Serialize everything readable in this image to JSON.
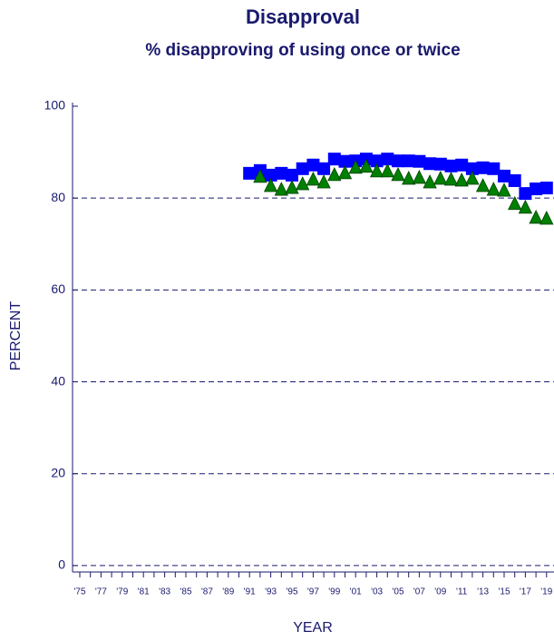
{
  "chart_data": {
    "type": "scatter",
    "title": "Disapproval",
    "subtitle": "% disapproving of using once or twice",
    "x_label": "YEAR",
    "y_label": "PERCENT",
    "categories": [
      "'75",
      null,
      "'77",
      null,
      "'79",
      null,
      "'81",
      null,
      "'83",
      null,
      "'85",
      null,
      "'87",
      null,
      "'89",
      null,
      "'91",
      null,
      "'93",
      null,
      "'95",
      null,
      "'97",
      null,
      "'99",
      null,
      "'01",
      null,
      "'03",
      null,
      "'05",
      null,
      "'07",
      null,
      "'09",
      null,
      "'11",
      null,
      "'13",
      null,
      "'15",
      null,
      "'17",
      null,
      "'19"
    ],
    "series": [
      {
        "color": "#0000ff",
        "marker": "square",
        "values": [
          null,
          null,
          null,
          null,
          null,
          null,
          null,
          null,
          null,
          null,
          null,
          null,
          null,
          null,
          null,
          null,
          85.4,
          86,
          85,
          85.4,
          85,
          86.4,
          87.2,
          86.4,
          88.5,
          88,
          88.1,
          88.5,
          88.1,
          88.5,
          88.1,
          88.1,
          88,
          87.5,
          87.4,
          87,
          87.2,
          86.4,
          86.6,
          86.4,
          84.8,
          83.8,
          81,
          82,
          82.2
        ]
      },
      {
        "color": "#008000",
        "marker": "triangle",
        "values": [
          null,
          null,
          null,
          null,
          null,
          null,
          null,
          null,
          null,
          null,
          null,
          null,
          null,
          null,
          null,
          null,
          null,
          84.6,
          82.6,
          81.8,
          82.2,
          83,
          84,
          83.4,
          85,
          85.4,
          86.6,
          86.8,
          85.8,
          85.8,
          85,
          84.2,
          84.4,
          83.4,
          84.2,
          84,
          83.8,
          84.2,
          82.6,
          81.8,
          81.6,
          78.7,
          77.9,
          75.7,
          75.5
        ]
      }
    ],
    "ylim": [
      -1.4,
      100
    ],
    "yticks": [
      0,
      20,
      40,
      60,
      80,
      100
    ],
    "grid": true
  }
}
